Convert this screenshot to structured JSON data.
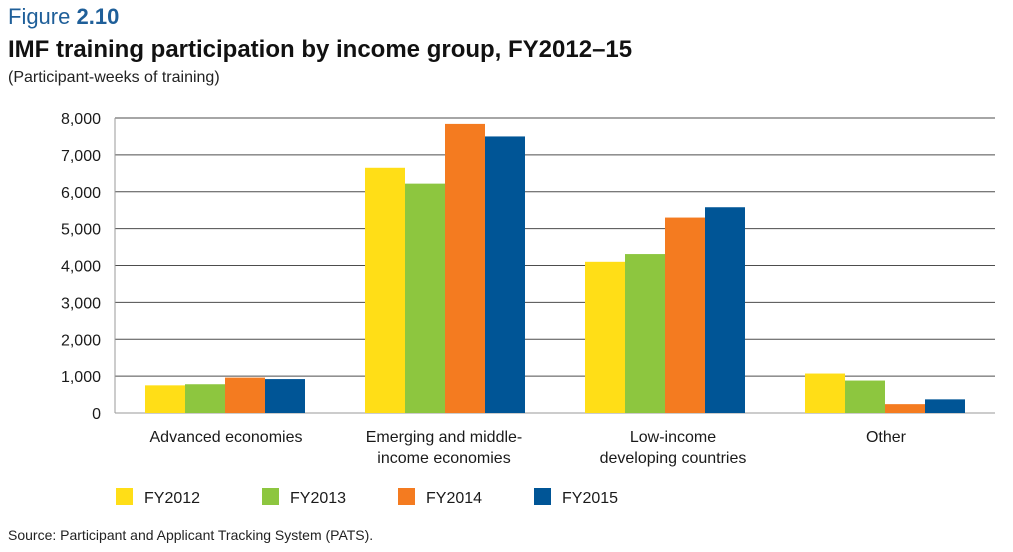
{
  "figure_label": {
    "prefix": "Figure",
    "number": "2.10"
  },
  "title": "IMF training participation by income group, FY2012–15",
  "subtitle": "(Participant-weeks of training)",
  "source": "Source: Participant and Applicant Tracking System (PATS).",
  "colors": {
    "FY2012": "#ffde17",
    "FY2013": "#8dc63f",
    "FY2014": "#f47b20",
    "FY2015": "#005596",
    "axis": "#9a9a9a",
    "grid": "#4d4d4d",
    "title_accent": "#1f5f99"
  },
  "chart_data": {
    "type": "bar",
    "categories": [
      [
        "Advanced economies"
      ],
      [
        "Emerging and middle-",
        "income economies"
      ],
      [
        "Low-income",
        "developing countries"
      ],
      [
        "Other"
      ]
    ],
    "series": [
      {
        "name": "FY2012",
        "values": [
          750,
          6650,
          4100,
          1070
        ]
      },
      {
        "name": "FY2013",
        "values": [
          780,
          6220,
          4310,
          880
        ]
      },
      {
        "name": "FY2014",
        "values": [
          960,
          7840,
          5300,
          240
        ]
      },
      {
        "name": "FY2015",
        "values": [
          920,
          7500,
          5580,
          370
        ]
      }
    ],
    "y_ticks": [
      "0",
      "1,000",
      "2,000",
      "3,000",
      "4,000",
      "5,000",
      "6,000",
      "7,000",
      "8,000"
    ],
    "ylim": [
      0,
      8000
    ],
    "grid": true,
    "legend_position": "bottom"
  }
}
